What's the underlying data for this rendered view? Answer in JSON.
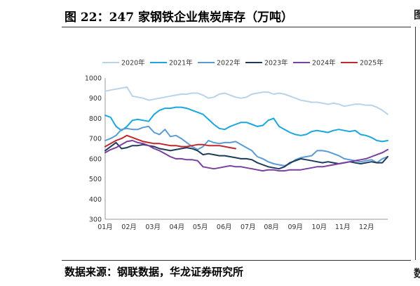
{
  "figure": {
    "title": "图 22：247 家钢铁企业焦炭库存（万吨）",
    "source": "数据来源：钢联数据，华龙证券研究所",
    "right_edge_top": "图",
    "right_edge_bottom": "数"
  },
  "chart_data": {
    "type": "line",
    "title": "",
    "xlabel": "",
    "ylabel": "",
    "xlim": [
      1,
      53
    ],
    "ylim": [
      300,
      1000
    ],
    "ytick_step": 100,
    "grid": false,
    "legend_position": "top",
    "x_ticks": [
      {
        "label": "01月",
        "x": 1
      },
      {
        "label": "02月",
        "x": 5.4
      },
      {
        "label": "03月",
        "x": 9.8
      },
      {
        "label": "04月",
        "x": 14.2
      },
      {
        "label": "05月",
        "x": 18.5
      },
      {
        "label": "06月",
        "x": 22.9
      },
      {
        "label": "07月",
        "x": 27.3
      },
      {
        "label": "08月",
        "x": 31.6
      },
      {
        "label": "09月",
        "x": 36
      },
      {
        "label": "10月",
        "x": 40.4
      },
      {
        "label": "11月",
        "x": 44.7
      },
      {
        "label": "12月",
        "x": 49.1
      }
    ],
    "series": [
      {
        "name": "2020年",
        "color": "#b8d4e8",
        "values": [
          935,
          940,
          945,
          950,
          955,
          910,
          905,
          900,
          890,
          895,
          900,
          905,
          910,
          915,
          920,
          920,
          925,
          925,
          915,
          900,
          905,
          920,
          925,
          915,
          905,
          900,
          905,
          920,
          925,
          930,
          930,
          920,
          925,
          920,
          910,
          900,
          890,
          885,
          880,
          880,
          875,
          870,
          875,
          870,
          860,
          865,
          870,
          870,
          865,
          865,
          855,
          840,
          820
        ]
      },
      {
        "name": "2021年",
        "color": "#1aa7e0",
        "values": [
          815,
          805,
          760,
          740,
          760,
          790,
          795,
          790,
          785,
          820,
          840,
          850,
          850,
          855,
          855,
          850,
          840,
          830,
          820,
          795,
          770,
          750,
          745,
          760,
          770,
          780,
          780,
          770,
          760,
          765,
          790,
          800,
          760,
          745,
          730,
          720,
          715,
          720,
          735,
          740,
          735,
          730,
          740,
          745,
          740,
          735,
          740,
          720,
          715,
          705,
          690,
          685,
          690
        ]
      },
      {
        "name": "2022年",
        "color": "#5b9bd5",
        "values": [
          690,
          700,
          715,
          745,
          750,
          745,
          745,
          755,
          760,
          730,
          720,
          745,
          710,
          715,
          700,
          680,
          660,
          645,
          660,
          690,
          680,
          675,
          680,
          680,
          685,
          670,
          655,
          640,
          610,
          600,
          585,
          575,
          570,
          565,
          575,
          595,
          605,
          610,
          615,
          640,
          640,
          635,
          625,
          615,
          600,
          595,
          590,
          585,
          590,
          595,
          580,
          600,
          610
        ]
      },
      {
        "name": "2023年",
        "color": "#1f3b5c",
        "values": [
          640,
          660,
          680,
          650,
          655,
          665,
          665,
          670,
          665,
          660,
          650,
          645,
          640,
          645,
          650,
          655,
          650,
          640,
          620,
          625,
          620,
          615,
          615,
          610,
          605,
          600,
          600,
          595,
          580,
          570,
          560,
          555,
          550,
          560,
          580,
          590,
          600,
          595,
          590,
          585,
          580,
          585,
          580,
          575,
          580,
          585,
          580,
          575,
          580,
          585,
          580,
          580,
          610
        ]
      },
      {
        "name": "2024年",
        "color": "#7a3fa0",
        "values": [
          630,
          645,
          655,
          670,
          685,
          690,
          680,
          675,
          665,
          650,
          640,
          625,
          610,
          600,
          600,
          595,
          595,
          590,
          560,
          555,
          550,
          555,
          560,
          565,
          560,
          560,
          555,
          550,
          545,
          540,
          545,
          545,
          540,
          540,
          545,
          545,
          545,
          550,
          555,
          560,
          560,
          565,
          570,
          575,
          580,
          585,
          590,
          595,
          600,
          610,
          620,
          630,
          645
        ]
      },
      {
        "name": "2025年",
        "color": "#c0282d",
        "values": [
          660,
          675,
          690,
          700,
          715,
          705,
          695,
          685,
          680,
          675,
          675,
          670,
          665,
          665,
          660,
          660,
          665,
          670,
          670,
          665,
          665,
          665,
          660,
          655,
          650
        ]
      }
    ]
  }
}
